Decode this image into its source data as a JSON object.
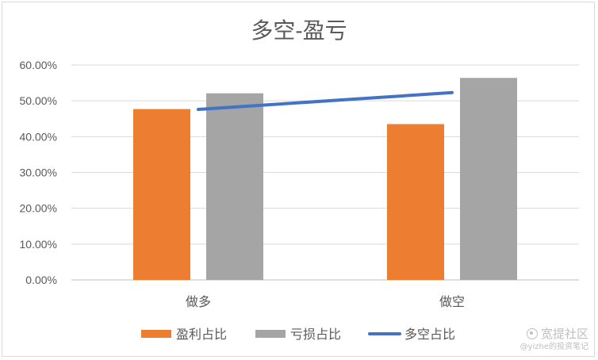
{
  "chart_data": {
    "type": "bar",
    "title": "多空-盈亏",
    "categories": [
      "做多",
      "做空"
    ],
    "series": [
      {
        "name": "盈利占比",
        "type": "bar",
        "color": "#ED7D31",
        "values": [
          47.7,
          43.5
        ]
      },
      {
        "name": "亏损占比",
        "type": "bar",
        "color": "#A5A5A5",
        "values": [
          52.1,
          56.4
        ]
      },
      {
        "name": "多空占比",
        "type": "line",
        "color": "#4472C4",
        "values": [
          47.6,
          52.3
        ]
      }
    ],
    "y_ticks": [
      "0.00%",
      "10.00%",
      "20.00%",
      "30.00%",
      "40.00%",
      "50.00%",
      "60.00%"
    ],
    "ylim": [
      0,
      60
    ],
    "y_unit": "%",
    "grid": true,
    "legend_position": "bottom"
  },
  "watermark": {
    "main_text": "宽提社区",
    "sub_text": "@yizhe的投资笔记",
    "icon": "wechat-icon"
  }
}
